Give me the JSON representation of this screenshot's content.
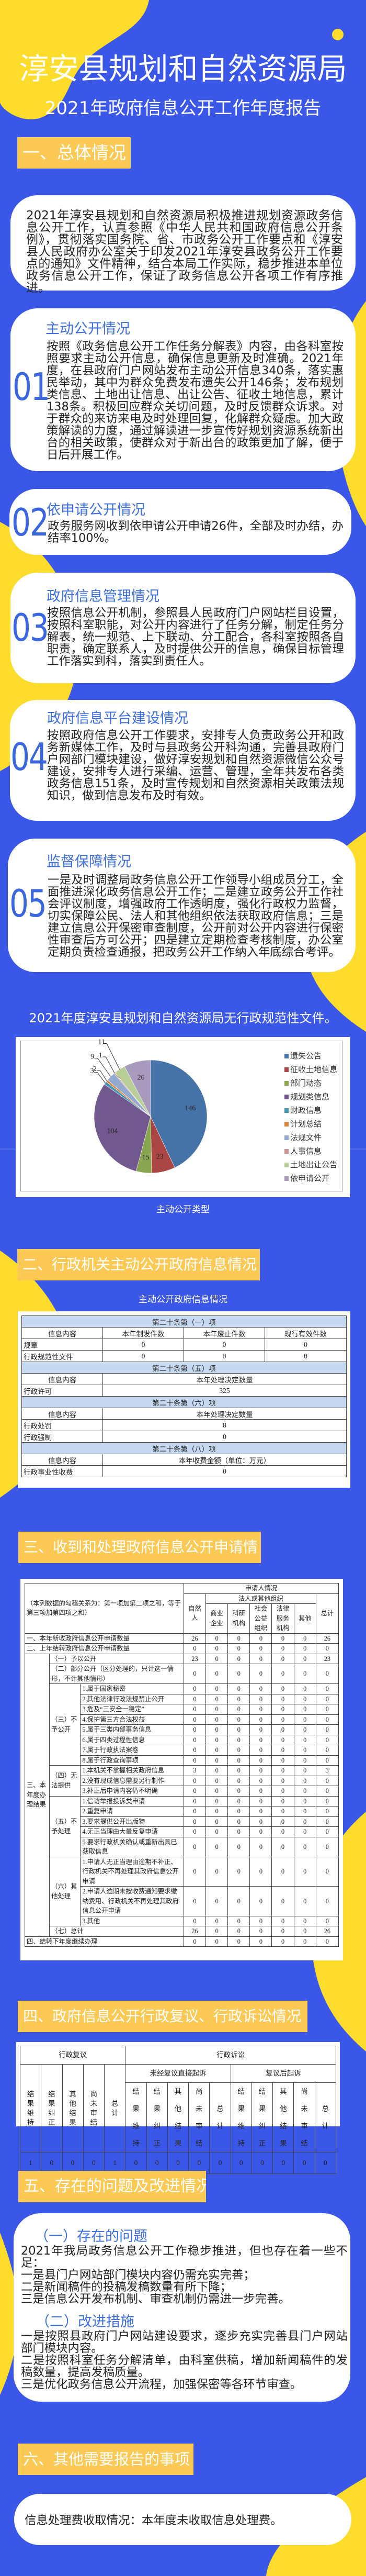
{
  "header": {
    "title": "淳安县规划和自然资源局",
    "subtitle": "2021年政府信息公开工作年度报告"
  },
  "colors": {
    "background": "#3a57e8",
    "accent_yellow": "#fddc2b",
    "section_header": "#fcc954",
    "heading_blue": "#3c6fe0"
  },
  "sections": [
    {
      "title": "一、总体情况"
    },
    {
      "title": "二、行政机关主动公开政府信息情况"
    },
    {
      "title": "三、收到和处理政府信息公开申请情"
    },
    {
      "title": "四、政府信息公开行政复议、行政诉讼情况"
    },
    {
      "title": "五、存在的问题及改进情况"
    },
    {
      "title": "六、其他需要报告的事项"
    }
  ],
  "overview": {
    "intro": "2021年淳安县规划和自然资源局积极推进规划资源政务信息公开工作，认真参照《中华人民共和国政府信息公开条例》，贯彻落实国务院、省、市政务公开工作要点和《淳安县人民政府办公室关于印发2021年淳安县政务公开工作要点的通知》文件精神，结合本局工作实际，稳步推进本单位政务信息公开工作，保证了政务信息公开各项工作有序推进。",
    "items": [
      {
        "number": "01",
        "title": "主动公开情况",
        "text": "按照《政务信息公开工作任务分解表》内容，由各科室按照要求主动公开信息，确保信息更新及时准确。2021年度，在县政府门户网站发布主动公开信息340条，落实惠民举动，其中为群众免费发布遗失公开146条；发布规划类信息、土地出让信息、出让公告、征收土地信息，累计138条。积极回应群众关切问题，及时反馈群众诉求。对于群众的来访来电及时处理回复，化解群众疑虑。加大政策解读的力度，通过解读进一步宣传好规划资源系统新出台的相关政策，使群众对于新出台的政策更加了解，便于日后开展工作。"
      },
      {
        "number": "02",
        "title": "依申请公开情况",
        "text": "政务服务网收到依申请公开申请26件，全部及时办结，办结率100%。"
      },
      {
        "number": "03",
        "title": "政府信息管理情况",
        "text": "按照信息公开机制，参照县人民政府门户网站栏目设置，按照科室职能，对公开内容进行了任务分解，制定任务分解表，统一规范、上下联动、分工配合，各科室按照各自职责，确定联系人，及时提供公开的信息，确保目标管理工作落实到科，落实到责任人。"
      },
      {
        "number": "04",
        "title": "政府信息平台建设情况",
        "text": "按照政府信息公开工作要求，安排专人负责政务公开和政务新媒体工作，及时与县政务公开科沟通，完善县政府门户网部门模块建设，做好淳安规划和自然资源微信公众号建设，安排专人进行采编、运营、管理，全年共发布各类政务信息151条，及时宣传规划和自然资源相关政策法规知识，做到信息发布及时有效。"
      },
      {
        "number": "05",
        "title": "监督保障情况",
        "text": "一是及时调整局政务信息公开工作领导小组成员分工，全面推进深化政务信息公开工作；二是建立政务公开工作社会评议制度，增强政府工作透明度，强化行政权力监督，切实保障公民、法人和其他组织依法获取政府信息；三是建立信息公开保密审查制度，公开前对公开内容进行保密性审查后方可公开；四是建立定期检查考核制度，办公室定期负责检查通报，把政务公开工作纳入年底综合考评。"
      }
    ],
    "no_normative_docs": "2021年度淳安县规划和自然资源局无行政规范性文件。"
  },
  "chart_data": {
    "type": "pie",
    "caption": "主动公开类型",
    "categories": [
      "遗失公告",
      "征收土地信息",
      "部门动态",
      "规划类信息",
      "财政信息",
      "计划总结",
      "法规文件",
      "人事信息",
      "土地出让公告",
      "依申请公开"
    ],
    "values": [
      146,
      23,
      15,
      104,
      3,
      2,
      9,
      1,
      11,
      26
    ],
    "colors": [
      "#4572a7",
      "#aa4643",
      "#89a54e",
      "#71588f",
      "#4198af",
      "#db843d",
      "#93a9cf",
      "#d19392",
      "#b9cd96",
      "#a99bbd"
    ],
    "legend": "right",
    "direction": "clockwise from top"
  },
  "table2": {
    "title": "主动公开政府信息情况",
    "blocks": [
      {
        "heading": "第二十条第（一）项",
        "columns": [
          "信息内容",
          "本年制发件数",
          "本年废止件数",
          "现行有效件数"
        ],
        "rows": [
          [
            "规章",
            "0",
            "0",
            "0"
          ],
          [
            "行政规范性文件",
            "0",
            "0",
            "0"
          ]
        ]
      },
      {
        "heading": "第二十条第（五）项",
        "columns": [
          "信息内容",
          "本年处理决定数量"
        ],
        "rows": [
          [
            "行政许可",
            "325"
          ]
        ]
      },
      {
        "heading": "第二十条第（六）项",
        "columns": [
          "信息内容",
          "本年处理决定数量"
        ],
        "rows": [
          [
            "行政处罚",
            "8"
          ],
          [
            "行政强制",
            "0"
          ]
        ]
      },
      {
        "heading": "第二十条第（八）项",
        "columns": [
          "信息内容",
          "本年收费金额（单位：万元）"
        ],
        "rows": [
          [
            "行政事业性收费",
            "0"
          ]
        ]
      }
    ]
  },
  "table3": {
    "note": "（本列数据的勾稽关系为：第一项加第二项之和，等于第三项加第四项之和）",
    "applicant": "申请人情况",
    "natural": "自然人",
    "legal": "法人或其他组织",
    "total": "总计",
    "subcols": [
      "商业企业",
      "科研机构",
      "社会公益组织",
      "法律服务机构",
      "其他"
    ],
    "top_rows": [
      {
        "label": "一、本年新收政府信息公开申请数量",
        "values": [
          "26",
          "0",
          "0",
          "0",
          "0",
          "0",
          "26"
        ]
      },
      {
        "label": "二、上年结转政府信息公开申请数量",
        "values": [
          "0",
          "0",
          "0",
          "0",
          "0",
          "0",
          "0"
        ]
      }
    ],
    "results_label": "三、本年度办理结果",
    "groups": [
      {
        "label": "（一）予以公开",
        "values": [
          "23",
          "0",
          "0",
          "0",
          "0",
          "0",
          "23"
        ]
      },
      {
        "label": "（二）部分公开（区分处理的，只计这一情形，不计其他情形）",
        "values": [
          "0",
          "0",
          "0",
          "0",
          "0",
          "0",
          "0"
        ]
      },
      {
        "label": "（三）不予公开",
        "items": [
          {
            "label": "1.属于国家秘密",
            "values": [
              "0",
              "0",
              "0",
              "0",
              "0",
              "0",
              "0"
            ]
          },
          {
            "label": "2.其他法律行政法规禁止公开",
            "values": [
              "0",
              "0",
              "0",
              "0",
              "0",
              "0",
              "0"
            ]
          },
          {
            "label": "3.危及“三安全一稳定”",
            "values": [
              "0",
              "0",
              "0",
              "0",
              "0",
              "0",
              "0"
            ]
          },
          {
            "label": "4.保护第三方合法权益",
            "values": [
              "0",
              "0",
              "0",
              "0",
              "0",
              "0",
              "0"
            ]
          },
          {
            "label": "5.属于三类内部事务信息",
            "values": [
              "0",
              "0",
              "0",
              "0",
              "0",
              "0",
              "0"
            ]
          },
          {
            "label": "6.属于四类过程性信息",
            "values": [
              "0",
              "0",
              "0",
              "0",
              "0",
              "0",
              "0"
            ]
          },
          {
            "label": "7.属于行政执法案卷",
            "values": [
              "0",
              "0",
              "0",
              "0",
              "0",
              "0",
              "0"
            ]
          },
          {
            "label": "8.属于行政查询事项",
            "values": [
              "0",
              "0",
              "0",
              "0",
              "0",
              "0",
              "0"
            ]
          }
        ]
      },
      {
        "label": "（四）无法提供",
        "items": [
          {
            "label": "1.本机关不掌握相关政府信息",
            "values": [
              "3",
              "0",
              "0",
              "0",
              "0",
              "0",
              "3"
            ]
          },
          {
            "label": "2.没有现成信息需要另行制作",
            "values": [
              "0",
              "0",
              "0",
              "0",
              "0",
              "0",
              "0"
            ]
          },
          {
            "label": "3.补正后申请内容仍不明确",
            "values": [
              "0",
              "0",
              "0",
              "0",
              "0",
              "0",
              "0"
            ]
          }
        ]
      },
      {
        "label": "（五）不予处理",
        "items": [
          {
            "label": "1.信访举报投诉类申请",
            "values": [
              "0",
              "0",
              "0",
              "0",
              "0",
              "0",
              "0"
            ]
          },
          {
            "label": "2.重复申请",
            "values": [
              "0",
              "0",
              "0",
              "0",
              "0",
              "0",
              "0"
            ]
          },
          {
            "label": "3.要求提供公开出版物",
            "values": [
              "0",
              "0",
              "0",
              "0",
              "0",
              "0",
              "0"
            ]
          },
          {
            "label": "4.无正当理由大量反复申请",
            "values": [
              "0",
              "0",
              "0",
              "0",
              "0",
              "0",
              "0"
            ]
          },
          {
            "label": "5.要求行政机关确认或重新出具已获取信息",
            "values": [
              "0",
              "0",
              "0",
              "0",
              "0",
              "0",
              "0"
            ]
          }
        ]
      },
      {
        "label": "（六）其他处理",
        "items": [
          {
            "label": "1.申请人无正当理由逾期不补正、行政机关不再处理其政府信息公开申请",
            "values": [
              "0",
              "0",
              "0",
              "0",
              "0",
              "0",
              "0"
            ]
          },
          {
            "label": "2.申请人逾期未按收费通知要求缴纳费用、行政机关不再处理其政府信息公开申请",
            "values": [
              "0",
              "0",
              "0",
              "0",
              "0",
              "0",
              "0"
            ]
          },
          {
            "label": "3.其他",
            "values": [
              "0",
              "0",
              "0",
              "0",
              "0",
              "0",
              "0"
            ]
          }
        ]
      },
      {
        "label": "（七）总计",
        "values": [
          "26",
          "0",
          "0",
          "0",
          "0",
          "0",
          "26"
        ]
      }
    ],
    "carry": {
      "label": "四、结转下年度继续办理",
      "values": [
        "0",
        "0",
        "0",
        "0",
        "0",
        "0",
        "0"
      ]
    }
  },
  "table4": {
    "review": "行政复议",
    "litigation": "行政诉讼",
    "direct": "未经复议直接起诉",
    "after_review": "复议后起诉",
    "columns": [
      "结果维持",
      "结果纠正",
      "其他结果",
      "尚未审结",
      "总计"
    ],
    "values": [
      "1",
      "0",
      "0",
      "0",
      "1",
      "0",
      "0",
      "0",
      "0",
      "0",
      "0",
      "0",
      "0",
      "0",
      "0"
    ]
  },
  "problems": {
    "issues_title": "（一）存在的问题",
    "issues": [
      "2021年我局政务信息公开工作稳步推进，但也存在着一些不足：",
      "一是县门户网站部门模块内容仍需充实完善；",
      "二是新闻稿件的投稿发稿数量有所下降；",
      "三是信息公开发布机制、审查机制仍需进一步完善。"
    ],
    "measures_title": "（二）改进措施",
    "measures": [
      "一是按照县政府门户网站建设要求，逐步充实完善县门户网站部门模块内容。",
      "二是按照科室任务分解清单，由科室供稿，增加新闻稿件的发稿数量，提高发稿质量。",
      "三是优化政务信息公开流程，加强保密等各环节审查。"
    ]
  },
  "other": {
    "text": "信息处理费收取情况：本年度未收取信息处理费。"
  }
}
